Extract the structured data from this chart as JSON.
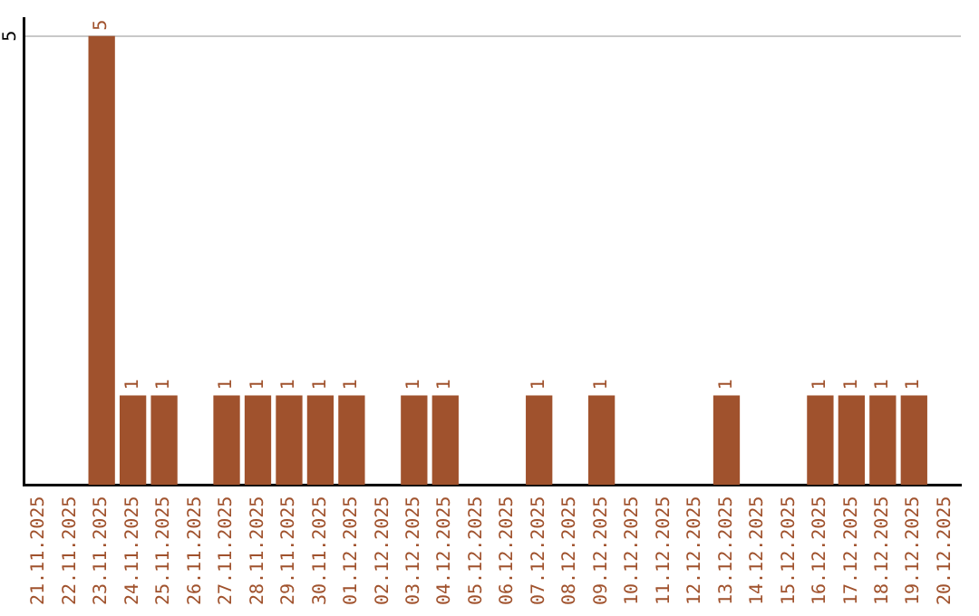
{
  "chart_data": {
    "type": "bar",
    "categories": [
      "21.11.2025",
      "22.11.2025",
      "23.11.2025",
      "24.11.2025",
      "25.11.2025",
      "26.11.2025",
      "27.11.2025",
      "28.11.2025",
      "29.11.2025",
      "30.11.2025",
      "01.12.2025",
      "02.12.2025",
      "03.12.2025",
      "04.12.2025",
      "05.12.2025",
      "06.12.2025",
      "07.12.2025",
      "08.12.2025",
      "09.12.2025",
      "10.12.2025",
      "11.12.2025",
      "12.12.2025",
      "13.12.2025",
      "14.12.2025",
      "15.12.2025",
      "16.12.2025",
      "17.12.2025",
      "18.12.2025",
      "19.12.2025",
      "20.12.2025"
    ],
    "values": [
      0,
      0,
      5,
      1,
      1,
      0,
      1,
      1,
      1,
      1,
      1,
      0,
      1,
      1,
      0,
      0,
      1,
      0,
      1,
      0,
      0,
      0,
      1,
      0,
      0,
      1,
      1,
      1,
      1,
      0
    ],
    "value_labels": [
      null,
      null,
      "5",
      "1",
      "1",
      null,
      "1",
      "1",
      "1",
      "1",
      "1",
      null,
      "1",
      "1",
      null,
      null,
      "1",
      null,
      "1",
      null,
      null,
      null,
      "1",
      null,
      null,
      "1",
      "1",
      "1",
      "1",
      null
    ],
    "color": "#a0522d",
    "ylim": [
      0,
      5.2
    ],
    "yticks": [
      5
    ],
    "grid": "y",
    "legend": false
  }
}
